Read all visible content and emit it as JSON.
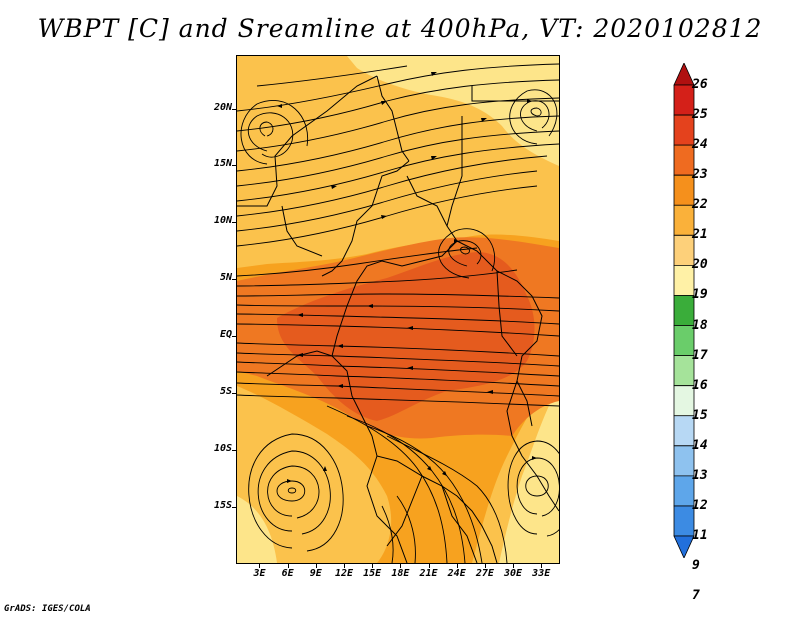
{
  "title": "WBPT [C] and Sreamline at 400hPa, VT: 2020102812",
  "footer": "GrADS: IGES/COLA",
  "map": {
    "lat_labels": [
      {
        "text": "20N",
        "lat": 20
      },
      {
        "text": "15N",
        "lat": 15
      },
      {
        "text": "10N",
        "lat": 10
      },
      {
        "text": "5N",
        "lat": 5
      },
      {
        "text": "EQ",
        "lat": 0
      },
      {
        "text": "5S",
        "lat": -5
      },
      {
        "text": "10S",
        "lat": -10
      },
      {
        "text": "15S",
        "lat": -15
      }
    ],
    "lon_labels": [
      {
        "text": "3E",
        "lon": 3
      },
      {
        "text": "6E",
        "lon": 6
      },
      {
        "text": "9E",
        "lon": 9
      },
      {
        "text": "12E",
        "lon": 12
      },
      {
        "text": "15E",
        "lon": 15
      },
      {
        "text": "18E",
        "lon": 18
      },
      {
        "text": "21E",
        "lon": 21
      },
      {
        "text": "24E",
        "lon": 24
      },
      {
        "text": "27E",
        "lon": 27
      },
      {
        "text": "30E",
        "lon": 30
      },
      {
        "text": "33E",
        "lon": 33
      }
    ],
    "lon_range": [
      0.5,
      35
    ],
    "lat_range": [
      -20,
      24.7
    ],
    "shading_colors": {
      "c19_20": "#fde58a",
      "c20_21": "#fbc24c",
      "c21_22": "#f7a21f",
      "c22_23": "#ef7822",
      "c23_24": "#e55b1e"
    },
    "line_color": "#000000"
  },
  "colorbar": {
    "levels": [
      "26",
      "25",
      "24",
      "23",
      "22",
      "21",
      "20",
      "19",
      "18",
      "17",
      "16",
      "15",
      "14",
      "13",
      "12",
      "11",
      "9",
      "7"
    ],
    "colors": [
      "#b01010",
      "#d42019",
      "#e4421d",
      "#ef6b20",
      "#f5901c",
      "#fab13a",
      "#fdd07a",
      "#fff1a6",
      "#3aad3a",
      "#6acd6a",
      "#a5e39a",
      "#e4f7e2",
      "#b7d8f4",
      "#8ec2ef",
      "#5ea6ea",
      "#3c8be3",
      "#2270dc"
    ]
  }
}
